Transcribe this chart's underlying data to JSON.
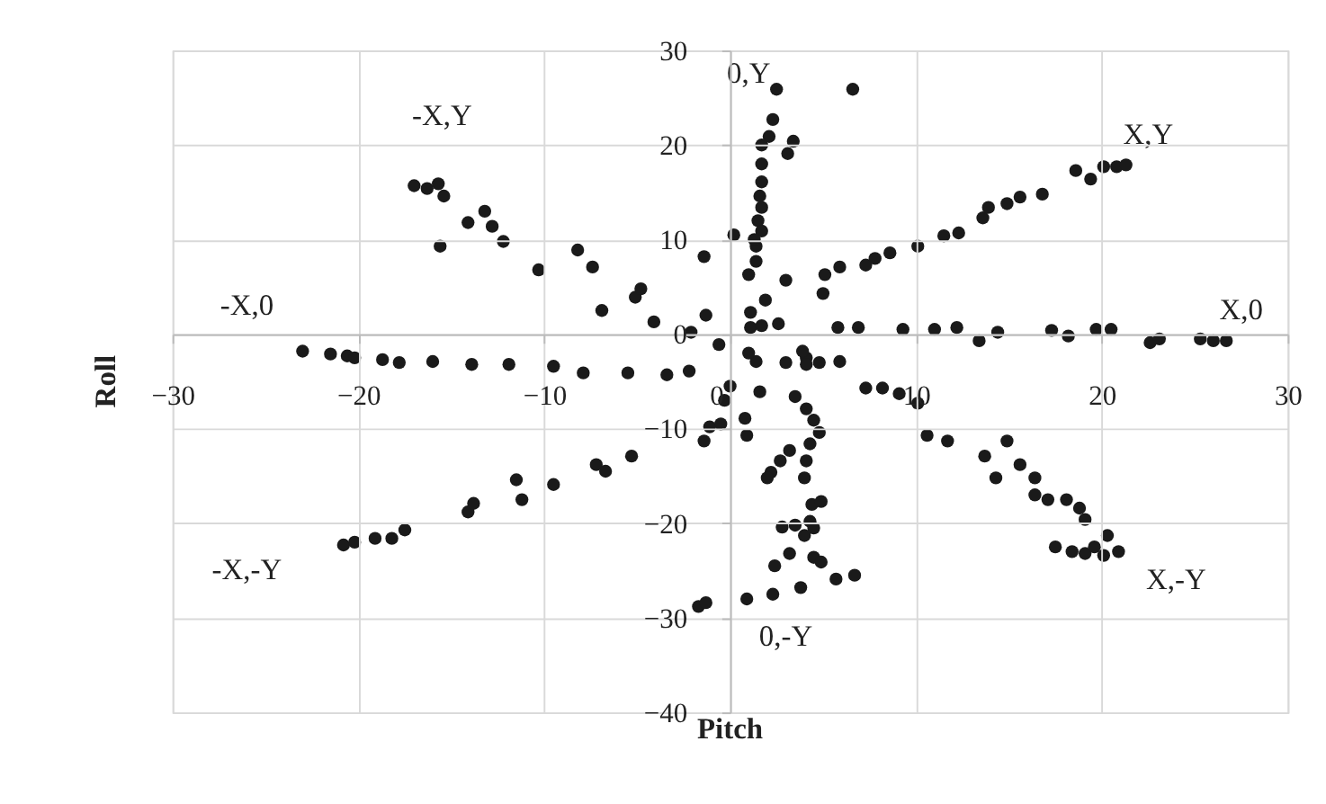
{
  "chart_data": {
    "type": "scatter",
    "xlabel": "Pitch",
    "ylabel": "Roll",
    "xlim": [
      -30,
      30
    ],
    "xticks": [
      -30,
      -20,
      -10,
      0,
      10,
      20,
      30
    ],
    "ylim": [
      -40,
      30
    ],
    "yticks": [
      -40,
      -30,
      -20,
      -10,
      0,
      10,
      20,
      30
    ],
    "grid": true,
    "marker": "circle",
    "annotations": [
      "-X,Y",
      "0,Y",
      "X,Y",
      "-X,0",
      "X,0",
      "-X,-Y",
      "0,-Y",
      "X,-Y"
    ],
    "series": [
      {
        "color": "#1a1a1a",
        "x": [
          -23,
          -21.5,
          -20.6,
          -20.2,
          -18.7,
          -17.8,
          -16,
          -13.9,
          -11.9,
          -9.5,
          -7.9,
          -5.5,
          -3.4,
          -2.2,
          -17,
          -16.3,
          -15.7,
          -15.4,
          -15.6,
          -14.1,
          -13.2,
          -12.8,
          -12.2,
          -10.3,
          -8.2,
          -7.4,
          -6.9,
          -5.1,
          -4.8,
          -4.1,
          -2.1,
          -1.3,
          -1.4,
          -0.6,
          -20.8,
          -20.2,
          -19.1,
          -18.2,
          -17.5,
          -14.1,
          -13.8,
          -11.5,
          -11.2,
          -9.5,
          -7.2,
          -6.7,
          -5.3,
          -1.4,
          -1.1,
          -0.5,
          -0.3,
          -1.7,
          -1.3,
          2.5,
          2.3,
          2.1,
          1.7,
          1.7,
          1.7,
          1.6,
          1.7,
          1.5,
          1.7,
          1.4,
          3.4,
          3.1,
          6.6,
          0.2,
          1.3,
          1,
          1.4,
          1.9,
          3,
          1.1,
          1.1,
          1.7,
          2.6,
          5.1,
          5.9,
          5,
          7.3,
          7.8,
          8.6,
          10.1,
          11.5,
          12.3,
          13.6,
          13.9,
          14.9,
          15.6,
          16.8,
          18.6,
          19.4,
          20.1,
          20.8,
          21.3,
          5.8,
          6.9,
          9.3,
          11,
          12.2,
          13.4,
          14.4,
          17.3,
          18.2,
          19.7,
          20.5,
          22.6,
          23.1,
          25.3,
          26,
          26.7,
          1.4,
          3,
          4.1,
          4.1,
          4.8,
          5.9,
          0,
          1,
          1.6,
          0.8,
          0.9,
          3.9,
          7.3,
          8.2,
          9.1,
          10.1,
          10.6,
          11.7,
          13.7,
          14.9,
          14.3,
          15.6,
          16.4,
          16.4,
          17.1,
          18.1,
          18.8,
          19.1,
          17.5,
          18.4,
          19.1,
          19.6,
          20.1,
          20.3,
          20.9,
          3.5,
          4.1,
          4.5,
          4.8,
          4.3,
          3.2,
          2.7,
          2.2,
          4.1,
          4.0,
          2.8,
          2.0,
          4.4,
          4.9,
          3.5,
          4.3,
          4.5,
          4.0,
          4.5,
          4.9,
          3.2,
          2.4,
          5.7,
          6.7,
          3.8,
          2.3,
          0.9
        ],
        "values": [
          -1.8,
          -2.1,
          -2.3,
          -2.5,
          -2.7,
          -3.0,
          -2.9,
          -3.2,
          -3.2,
          -3.4,
          -4.1,
          -4.1,
          -4.3,
          -3.9,
          15.7,
          15.4,
          15.9,
          14.6,
          9.3,
          11.8,
          13,
          11.4,
          9.8,
          6.8,
          8.9,
          7.1,
          2.5,
          3.9,
          4.8,
          1.3,
          0.2,
          2,
          8.2,
          -1.1,
          -22.3,
          -22,
          -21.6,
          -21.6,
          -20.7,
          -18.8,
          -17.9,
          -15.4,
          -17.5,
          -15.9,
          -13.8,
          -14.5,
          -12.9,
          -11.3,
          -9.8,
          -9.5,
          -7.0,
          -28.8,
          -28.4,
          25.9,
          22.7,
          20.9,
          20,
          18,
          16.1,
          14.6,
          13.4,
          12,
          10.9,
          9.3,
          20.4,
          19.1,
          25.9,
          10.5,
          10,
          6.3,
          7.7,
          3.6,
          5.7,
          2.3,
          0.7,
          0.9,
          1.1,
          6.3,
          7.1,
          4.3,
          7.3,
          8.0,
          8.6,
          9.3,
          10.4,
          10.7,
          12.3,
          13.4,
          13.8,
          14.5,
          14.8,
          17.3,
          16.4,
          17.7,
          17.7,
          17.9,
          0.7,
          0.7,
          0.5,
          0.5,
          0.7,
          -0.7,
          0.2,
          0.4,
          -0.2,
          0.5,
          0.5,
          -0.9,
          -0.5,
          -0.5,
          -0.7,
          -0.7,
          -2.9,
          -3,
          -2.5,
          -3.2,
          -3,
          -2.9,
          -5.5,
          -2,
          -6.1,
          -8.9,
          -10.7,
          -1.8,
          -5.7,
          -5.7,
          -6.3,
          -7.3,
          -10.7,
          -11.3,
          -12.9,
          -11.3,
          -15.2,
          -13.8,
          -15.2,
          -17,
          -17.5,
          -17.5,
          -18.4,
          -19.6,
          -22.5,
          -23,
          -23.2,
          -22.5,
          -23.4,
          -21.3,
          -23,
          -6.6,
          -7.9,
          -9.1,
          -10.4,
          -11.6,
          -12.3,
          -13.4,
          -14.6,
          -13.4,
          -15.2,
          -20.4,
          -15.2,
          -18,
          -17.7,
          -20.2,
          -19.8,
          -20.5,
          -21.3,
          -23.6,
          -24.1,
          -23.2,
          -24.5,
          -25.9,
          -25.5,
          -26.8,
          -27.5,
          -28.0
        ]
      }
    ]
  }
}
